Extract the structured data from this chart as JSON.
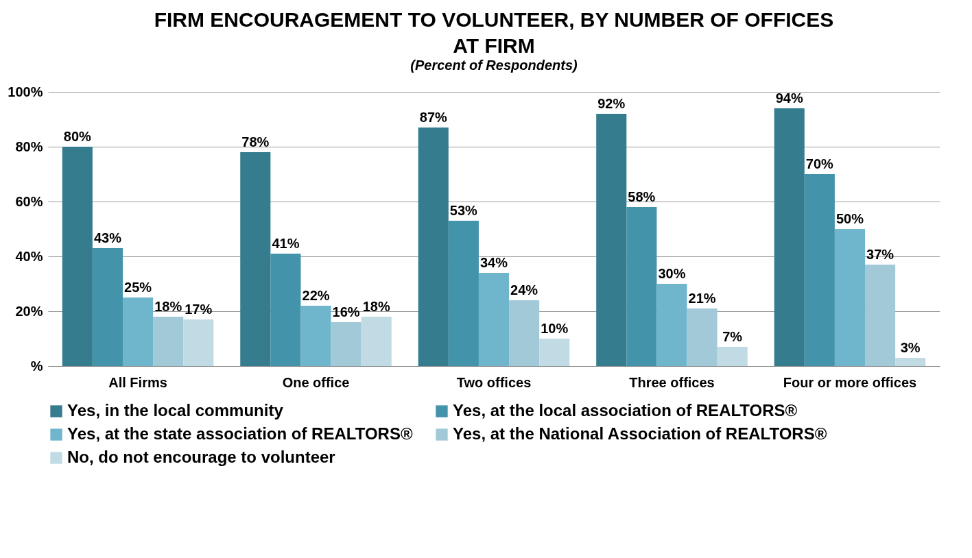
{
  "chart_data": {
    "type": "bar",
    "title": "FIRM ENCOURAGEMENT TO VOLUNTEER, BY NUMBER OF OFFICES AT FIRM",
    "subtitle": "(Percent of Respondents)",
    "categories": [
      "All Firms",
      "One office",
      "Two offices",
      "Three offices",
      "Four or more offices"
    ],
    "series": [
      {
        "name": "Yes, in the local community",
        "color": "#357c8f",
        "values": [
          80,
          78,
          87,
          92,
          94
        ],
        "value_labels": [
          "80%",
          "78%",
          "87%",
          "92%",
          "94%"
        ]
      },
      {
        "name": "Yes, at the local association of REALTORS®",
        "color": "#4393aa",
        "values": [
          43,
          41,
          53,
          58,
          70
        ],
        "value_labels": [
          "43%",
          "41%",
          "53%",
          "58%",
          "70%"
        ]
      },
      {
        "name": "Yes, at the state association of REALTORS®",
        "color": "#6fb6cc",
        "values": [
          25,
          22,
          34,
          30,
          50
        ],
        "value_labels": [
          "25%",
          "22%",
          "34%",
          "30%",
          "50%"
        ]
      },
      {
        "name": "Yes, at the National Association of REALTORS®",
        "color": "#a2c9d8",
        "values": [
          18,
          16,
          24,
          21,
          37
        ],
        "value_labels": [
          "18%",
          "16%",
          "24%",
          "21%",
          "37%"
        ]
      },
      {
        "name": "No, do not encourage to volunteer",
        "color": "#c0dbe4",
        "values": [
          17,
          18,
          10,
          7,
          3
        ],
        "value_labels": [
          "17%",
          "18%",
          "10%",
          "7%",
          "3%"
        ]
      }
    ],
    "ylim": [
      0,
      100
    ],
    "yticks": [
      {
        "value": 0,
        "label": "%"
      },
      {
        "value": 20,
        "label": "20%"
      },
      {
        "value": 40,
        "label": "40%"
      },
      {
        "value": 60,
        "label": "60%"
      },
      {
        "value": 80,
        "label": "80%"
      },
      {
        "value": 100,
        "label": "100%"
      }
    ],
    "grid": "y",
    "legend": "bottom"
  }
}
